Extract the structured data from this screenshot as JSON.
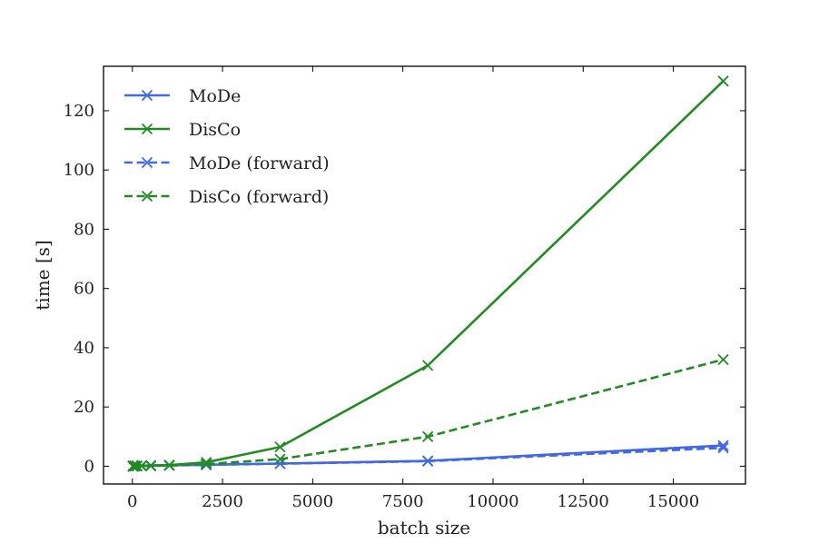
{
  "chart_data": {
    "type": "line",
    "title": "",
    "xlabel": "batch size",
    "ylabel": "time [s]",
    "xlim": [
      -800,
      17000
    ],
    "ylim": [
      -6,
      135
    ],
    "xticks": [
      0,
      2500,
      5000,
      7500,
      10000,
      12500,
      15000
    ],
    "xtick_labels": [
      "0",
      "2500",
      "5000",
      "7500",
      "10000",
      "12500",
      "15000"
    ],
    "yticks": [
      0,
      20,
      40,
      60,
      80,
      100,
      120
    ],
    "ytick_labels": [
      "0",
      "20",
      "40",
      "60",
      "80",
      "100",
      "120"
    ],
    "grid": false,
    "legend_position": "top-left",
    "x": [
      16,
      32,
      64,
      128,
      256,
      512,
      1024,
      2048,
      4096,
      8192,
      16384
    ],
    "series": [
      {
        "name": "MoDe",
        "color": "#4169e1",
        "linestyle": "solid",
        "marker": "x",
        "values": [
          0.02,
          0.03,
          0.05,
          0.08,
          0.12,
          0.2,
          0.3,
          0.5,
          0.9,
          1.8,
          7.0
        ]
      },
      {
        "name": "DisCo",
        "color": "#228b22",
        "linestyle": "solid",
        "marker": "x",
        "values": [
          0.05,
          0.06,
          0.08,
          0.1,
          0.15,
          0.25,
          0.4,
          1.3,
          6.5,
          34,
          130
        ]
      },
      {
        "name": "MoDe (forward)",
        "color": "#4169e1",
        "linestyle": "dashed",
        "marker": "x",
        "values": [
          0.02,
          0.03,
          0.04,
          0.06,
          0.1,
          0.15,
          0.25,
          0.45,
          0.85,
          1.7,
          6.2
        ]
      },
      {
        "name": "DisCo (forward)",
        "color": "#228b22",
        "linestyle": "dashed",
        "marker": "x",
        "values": [
          0.03,
          0.04,
          0.05,
          0.07,
          0.1,
          0.15,
          0.25,
          0.7,
          2.4,
          10,
          36
        ]
      }
    ]
  }
}
